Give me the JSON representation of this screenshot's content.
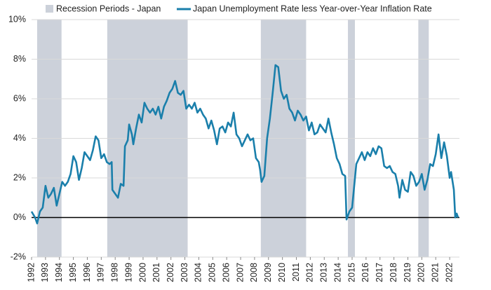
{
  "chart_data": {
    "type": "line",
    "series": [
      {
        "name": "Japan Unemployment Rate less Year-over-Year Inflation Rate",
        "color": "#1a7fab",
        "values": [
          0.3,
          0.0,
          -0.3,
          0.3,
          0.5,
          1.6,
          1.0,
          1.2,
          1.5,
          0.6,
          1.2,
          1.8,
          1.6,
          1.8,
          2.2,
          3.1,
          2.8,
          1.9,
          2.5,
          3.3,
          3.1,
          2.9,
          3.4,
          4.1,
          3.9,
          3.0,
          3.2,
          2.8,
          2.7,
          2.8,
          1.4,
          1.2,
          1.0,
          1.7,
          1.6,
          3.6,
          3.9,
          4.7,
          4.2,
          3.7,
          4.5,
          5.2,
          4.8,
          5.8,
          5.5,
          5.3,
          5.5,
          5.2,
          5.6,
          5.0,
          5.6,
          5.9,
          6.3,
          6.5,
          6.9,
          6.3,
          6.2,
          6.4,
          5.5,
          5.7,
          5.5,
          5.8,
          5.3,
          5.5,
          5.2,
          5.0,
          4.5,
          4.9,
          4.4,
          3.7,
          4.5,
          4.6,
          4.3,
          4.8,
          4.6,
          5.3,
          4.2,
          4.0,
          3.6,
          3.9,
          4.2,
          3.9,
          4.0,
          3.0,
          2.8,
          2.4,
          1.8,
          2.1,
          4.0,
          5.0,
          6.3,
          7.7,
          7.6,
          6.4,
          6.0,
          6.2,
          5.5,
          5.3,
          4.9,
          5.4,
          5.2,
          4.9,
          5.1,
          4.4,
          4.8,
          4.2,
          4.3,
          4.7,
          4.5,
          4.3,
          5.0,
          4.3,
          3.7,
          3.0,
          2.7,
          2.2,
          2.1,
          -0.1,
          0.3,
          0.5,
          2.7,
          3.0,
          3.3,
          2.9,
          3.3,
          3.1,
          3.5,
          3.2,
          3.6,
          3.5,
          2.6,
          2.5,
          2.6,
          2.3,
          2.2,
          1.6,
          1.0,
          1.9,
          1.4,
          1.3,
          2.3,
          2.1,
          1.6,
          1.8,
          2.2,
          1.4,
          1.9,
          2.7,
          2.6,
          3.2,
          4.2,
          3.0,
          3.8,
          3.1,
          2.0,
          2.3,
          1.4,
          0.0,
          0.2,
          0.0
        ]
      }
    ],
    "x": [
      1992.0,
      1992.25,
      1992.4,
      1992.6,
      1992.8,
      1993.0,
      1993.2,
      1993.4,
      1993.6,
      1993.8,
      1994.0,
      1994.2,
      1994.4,
      1994.6,
      1994.8,
      1995.0,
      1995.2,
      1995.4,
      1995.6,
      1995.8,
      1996.0,
      1996.2,
      1996.4,
      1996.6,
      1996.8,
      1997.0,
      1997.2,
      1997.4,
      1997.6,
      1997.75,
      1997.8,
      1998.0,
      1998.2,
      1998.4,
      1998.6,
      1998.7,
      1998.9,
      1999.0,
      1999.2,
      1999.3,
      1999.5,
      1999.7,
      1999.9,
      2000.1,
      2000.3,
      2000.5,
      2000.7,
      2000.9,
      2001.1,
      2001.3,
      2001.5,
      2001.7,
      2001.9,
      2002.1,
      2002.3,
      2002.5,
      2002.7,
      2002.9,
      2003.1,
      2003.3,
      2003.5,
      2003.7,
      2003.9,
      2004.1,
      2004.3,
      2004.5,
      2004.7,
      2004.9,
      2005.1,
      2005.3,
      2005.5,
      2005.7,
      2005.9,
      2006.1,
      2006.3,
      2006.5,
      2006.7,
      2006.9,
      2007.1,
      2007.3,
      2007.5,
      2007.7,
      2007.9,
      2008.1,
      2008.3,
      2008.4,
      2008.5,
      2008.7,
      2008.9,
      2009.1,
      2009.3,
      2009.5,
      2009.7,
      2009.9,
      2010.1,
      2010.3,
      2010.5,
      2010.7,
      2010.9,
      2011.1,
      2011.3,
      2011.5,
      2011.7,
      2011.9,
      2012.1,
      2012.3,
      2012.5,
      2012.7,
      2012.9,
      2013.1,
      2013.3,
      2013.5,
      2013.7,
      2013.9,
      2014.1,
      2014.3,
      2014.5,
      2014.6,
      2014.8,
      2015.0,
      2015.3,
      2015.5,
      2015.7,
      2015.9,
      2016.1,
      2016.3,
      2016.5,
      2016.7,
      2016.9,
      2017.1,
      2017.3,
      2017.5,
      2017.7,
      2017.9,
      2018.1,
      2018.3,
      2018.4,
      2018.6,
      2018.8,
      2019.0,
      2019.2,
      2019.4,
      2019.6,
      2019.8,
      2020.0,
      2020.2,
      2020.4,
      2020.6,
      2020.8,
      2021.0,
      2021.2,
      2021.4,
      2021.6,
      2021.8,
      2022.0,
      2022.1,
      2022.3,
      2022.4,
      2022.5,
      2022.6
    ],
    "shaded_periods": {
      "name": "Recession Periods - Japan",
      "color": "#ccd1da",
      "ranges": [
        [
          1992.4,
          1994.15
        ],
        [
          1997.43,
          2003.2
        ],
        [
          2008.45,
          2011.7
        ],
        [
          2014.7,
          2015.2
        ],
        [
          2019.75,
          2020.5
        ]
      ]
    },
    "xlim": [
      1992,
      2022.7
    ],
    "xticks": [
      1992,
      1993,
      1994,
      1995,
      1996,
      1997,
      1998,
      1999,
      2000,
      2001,
      2002,
      2003,
      2004,
      2005,
      2006,
      2007,
      2008,
      2009,
      2010,
      2011,
      2012,
      2013,
      2014,
      2015,
      2016,
      2017,
      2018,
      2019,
      2020,
      2021,
      2022
    ],
    "ylim": [
      -2,
      10
    ],
    "yticks": [
      {
        "value": -2,
        "label": "-2%"
      },
      {
        "value": 0,
        "label": "0%"
      },
      {
        "value": 2,
        "label": "2%"
      },
      {
        "value": 4,
        "label": "4%"
      },
      {
        "value": 6,
        "label": "6%"
      },
      {
        "value": 8,
        "label": "8%"
      },
      {
        "value": 10,
        "label": "10%"
      }
    ],
    "grid": true
  }
}
